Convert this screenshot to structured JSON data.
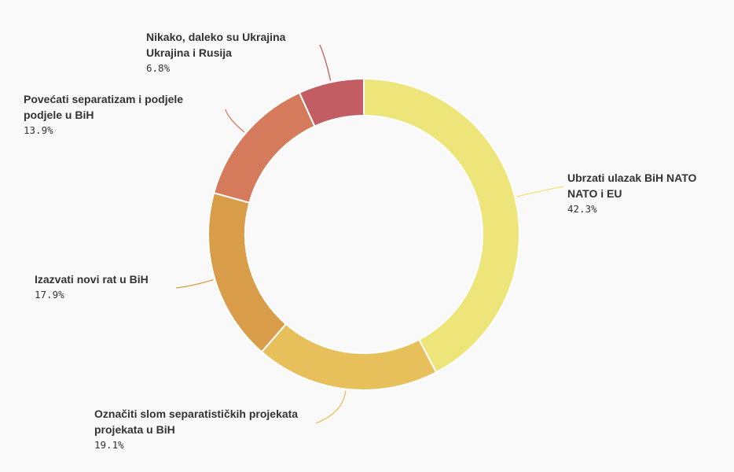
{
  "chart_data": {
    "type": "pie",
    "variant": "donut",
    "start_angle_deg": 0,
    "direction": "clockwise",
    "slices": [
      {
        "label": "Ubrzati ulazak BiH NATO\nNATO i EU",
        "value": 42.3,
        "value_text": "42.3%",
        "color": "#ede57a"
      },
      {
        "label": "Označiti slom separatističkih projekata\nprojekata u BiH",
        "value": 19.1,
        "value_text": "19.1%",
        "color": "#e7c05c"
      },
      {
        "label": "Izazvati novi rat u BiH",
        "value": 17.9,
        "value_text": "17.9%",
        "color": "#d99d4a"
      },
      {
        "label": "Povećati separatizam i podjele\npodjele u BiH",
        "value": 13.9,
        "value_text": "13.9%",
        "color": "#d67a5c"
      },
      {
        "label": "Nikako, daleko su Ukrajina\nUkrajina i Rusija",
        "value": 6.8,
        "value_text": "6.8%",
        "color": "#c15d63"
      }
    ]
  }
}
